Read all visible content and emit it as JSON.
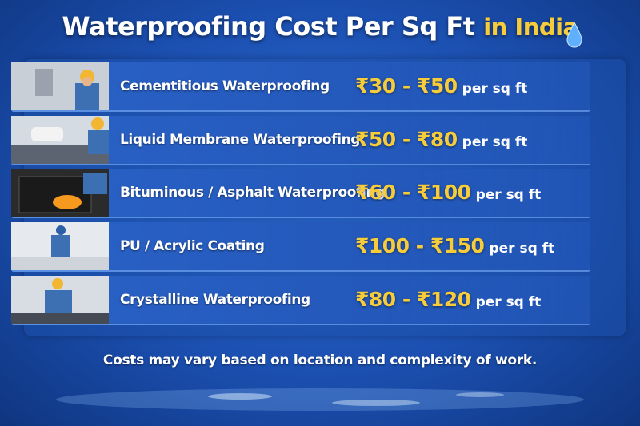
{
  "header": {
    "title": "Waterproofing Cost Per Sq Ft",
    "title_accent": "in India"
  },
  "rows": [
    {
      "name": "Cementitious Waterproofing",
      "price": "₹30 - ₹50",
      "unit": "per sq ft"
    },
    {
      "name": "Liquid Membrane Waterproofing",
      "price": "₹50 - ₹80",
      "unit": "per sq ft"
    },
    {
      "name": "Bituminous / Asphalt Waterproofing",
      "price": "₹60 - ₹100",
      "unit": "per sq ft"
    },
    {
      "name": "PU / Acrylic Coating",
      "price": "₹100 - ₹150",
      "unit": "per sq ft"
    },
    {
      "name": "Crystalline Waterproofing",
      "price": "₹80 - ₹120",
      "unit": "per sq ft"
    }
  ],
  "footer": {
    "note": "Costs may vary based on location and complexity of work."
  }
}
